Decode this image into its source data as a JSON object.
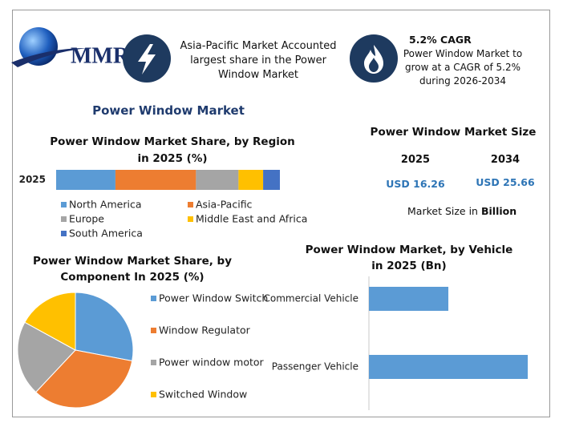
{
  "header": {
    "logo": "MMR",
    "highlight_1": "Asia-Pacific Market Accounted largest share in the Power Window Market",
    "highlight_2_title": "5.2% CAGR",
    "highlight_2_text": "Power Window Market to grow at a CAGR of 5.2% during 2026-2034",
    "title": "Power Window Market"
  },
  "market_size": {
    "title": "Power Window Market Size",
    "years": [
      "2025",
      "2034"
    ],
    "values": [
      "USD 16.26",
      "USD 25.66"
    ],
    "note": "Market Size in",
    "note_unit": "Billion"
  },
  "chart_data": [
    {
      "type": "bar",
      "orientation": "horizontal",
      "stacked": true,
      "title": "Power Window Market Share, by Region in 2025 (%)",
      "categories": [
        "2025"
      ],
      "xlim": [
        0,
        100
      ],
      "series": [
        {
          "name": "North America",
          "color": "#5b9bd5",
          "values": [
            26.5
          ]
        },
        {
          "name": "Asia-Pacific",
          "color": "#ed7d31",
          "values": [
            36
          ]
        },
        {
          "name": "Europe",
          "color": "#a5a5a5",
          "values": [
            19
          ]
        },
        {
          "name": "Middle East and Africa",
          "color": "#ffc000",
          "values": [
            11
          ]
        },
        {
          "name": "South America",
          "color": "#4472c4",
          "values": [
            7.5
          ]
        }
      ]
    },
    {
      "type": "pie",
      "title": "Power Window Market Share, by Component In 2025 (%)",
      "categories": [
        "Power Window Switch",
        "Window Regulator",
        "Power window motor",
        "Switched Window"
      ],
      "values": [
        28,
        34,
        21,
        17
      ],
      "colors": [
        "#5b9bd5",
        "#ed7d31",
        "#a5a5a5",
        "#ffc000"
      ]
    },
    {
      "type": "bar",
      "orientation": "horizontal",
      "title": "Power Window Market, by Vehicle in 2025 (Bn)",
      "categories": [
        "Commercial Vehicle",
        "Passenger Vehicle"
      ],
      "values": [
        5.42,
        10.84
      ],
      "color": "#5b9bd5",
      "xlim": [
        0,
        11
      ]
    }
  ]
}
